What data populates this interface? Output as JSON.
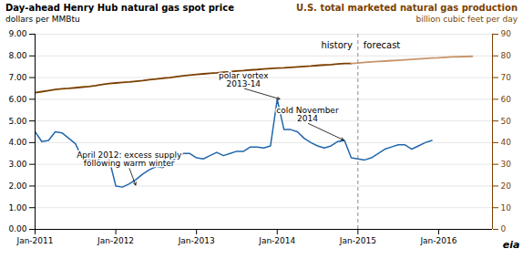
{
  "chart_data": {
    "type": "line",
    "title": "Day-ahead Henry Hub natural gas spot price",
    "ylabel": "dollars per MMBtu",
    "title_right": "U.S. total marketed natural gas production",
    "y2label": "billion cubic feet per day",
    "xlim": [
      0,
      68
    ],
    "xticks": [
      {
        "value": 0,
        "label": "Jan-2011"
      },
      {
        "value": 12,
        "label": "Jan-2012"
      },
      {
        "value": 24,
        "label": "Jan-2013"
      },
      {
        "value": 36,
        "label": "Jan-2014"
      },
      {
        "value": 48,
        "label": "Jan-2015"
      },
      {
        "value": 60,
        "label": "Jan-2016"
      }
    ],
    "ylim": [
      0,
      9.0
    ],
    "yticks": [
      {
        "value": 0.0,
        "label": "0.00"
      },
      {
        "value": 1.0,
        "label": "1.00"
      },
      {
        "value": 2.0,
        "label": "2.00"
      },
      {
        "value": 3.0,
        "label": "3.00"
      },
      {
        "value": 4.0,
        "label": "4.00"
      },
      {
        "value": 5.0,
        "label": "5.00"
      },
      {
        "value": 6.0,
        "label": "6.00"
      },
      {
        "value": 7.0,
        "label": "7.00"
      },
      {
        "value": 8.0,
        "label": "8.00"
      },
      {
        "value": 9.0,
        "label": "9.00"
      }
    ],
    "y2lim": [
      0,
      90
    ],
    "y2ticks": [
      0,
      10,
      20,
      30,
      40,
      50,
      60,
      70,
      80,
      90
    ],
    "grid": true,
    "forecast_start": 48,
    "history_label": "history",
    "forecast_label": "forecast",
    "annotations": [
      {
        "text": "polar vortex\n2013-14",
        "x": 36.5,
        "y": 6.0
      },
      {
        "text": "April 2012: excess supply\nfollowing warm winter",
        "x": 15,
        "y": 2.0
      },
      {
        "text": "cold November\n2014",
        "x": 46,
        "y": 4.1
      }
    ],
    "logo": "eia",
    "series": [
      {
        "axis": "y",
        "type": "line",
        "color": "#2166ac",
        "x": [
          0,
          1,
          2,
          3,
          4,
          5,
          6,
          7,
          8,
          9,
          10,
          11,
          12,
          13,
          14,
          15,
          16,
          17,
          18,
          19,
          20,
          21,
          22,
          23,
          24,
          25,
          26,
          27,
          28,
          29,
          30,
          31,
          32,
          33,
          34,
          35,
          36,
          37,
          38,
          39,
          40,
          41,
          42,
          43,
          44,
          45,
          46,
          47,
          48,
          49,
          50,
          51,
          52,
          53,
          54,
          55,
          56,
          57,
          58,
          59
        ],
        "values": [
          4.5,
          4.05,
          4.1,
          4.5,
          4.45,
          4.2,
          3.95,
          3.3,
          3.2,
          3.1,
          3.35,
          3.25,
          2.0,
          1.95,
          2.1,
          2.3,
          2.55,
          2.75,
          2.9,
          2.85,
          3.05,
          3.3,
          3.5,
          3.5,
          3.3,
          3.25,
          3.4,
          3.55,
          3.4,
          3.5,
          3.6,
          3.6,
          3.8,
          3.8,
          3.75,
          3.85,
          6.0,
          4.6,
          4.6,
          4.5,
          4.2,
          4.0,
          3.85,
          3.75,
          3.85,
          4.05,
          4.1,
          3.3,
          3.25,
          3.2,
          3.3,
          3.5,
          3.7,
          3.8,
          3.9,
          3.9,
          3.7,
          3.85,
          4.0,
          4.1
        ]
      },
      {
        "axis": "y2",
        "type": "line",
        "color": "#7B3F00",
        "x": [
          0,
          1,
          2,
          3,
          4,
          5,
          6,
          7,
          8,
          9,
          10,
          11,
          12,
          13,
          14,
          15,
          16,
          17,
          18,
          19,
          20,
          21,
          22,
          23,
          24,
          25,
          26,
          27,
          28,
          29,
          30,
          31,
          32,
          33,
          34,
          35,
          36,
          37,
          38,
          39,
          40,
          41,
          42,
          43,
          44,
          45,
          46,
          47
        ],
        "values": [
          63.0,
          63.5,
          64.0,
          64.5,
          64.8,
          65.0,
          65.3,
          65.6,
          65.9,
          66.3,
          66.8,
          67.2,
          67.5,
          67.8,
          68.0,
          68.3,
          68.6,
          69.0,
          69.3,
          69.7,
          70.0,
          70.4,
          70.8,
          71.1,
          71.4,
          71.7,
          72.0,
          72.2,
          72.5,
          72.7,
          73.0,
          73.2,
          73.5,
          73.7,
          74.0,
          74.2,
          74.4,
          74.5,
          74.7,
          74.9,
          75.1,
          75.3,
          75.6,
          75.8,
          76.0,
          76.3,
          76.5,
          76.5
        ]
      },
      {
        "axis": "y2",
        "type": "line",
        "color": "#C8956C",
        "x": [
          47,
          48,
          49,
          50,
          51,
          52,
          53,
          54,
          55,
          56,
          57,
          58,
          59,
          60,
          61,
          62,
          63,
          64,
          65
        ],
        "values": [
          76.5,
          76.7,
          77.0,
          77.2,
          77.4,
          77.6,
          77.8,
          78.0,
          78.2,
          78.4,
          78.6,
          78.8,
          79.0,
          79.1,
          79.3,
          79.5,
          79.6,
          79.7,
          79.8
        ]
      }
    ]
  }
}
